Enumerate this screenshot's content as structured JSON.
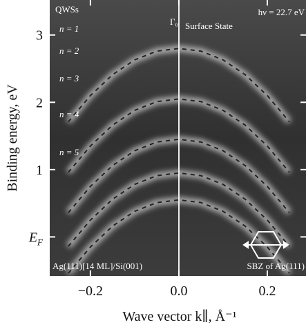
{
  "chart_data": {
    "type": "line",
    "ylabel": "Binding energy, eV",
    "xlabel": "Wave vector k∥, Å⁻¹",
    "xlim": [
      -0.292,
      0.2875
    ],
    "ylim": [
      3.52,
      -0.58
    ],
    "xticks": [
      {
        "value": -0.2,
        "label": "−0.2"
      },
      {
        "value": 0,
        "label": "0.0"
      },
      {
        "value": 0.2,
        "label": "0.2"
      }
    ],
    "yticks": [
      {
        "value": 0,
        "label": "EF"
      },
      1,
      2,
      3
    ],
    "x": [
      -0.25,
      -0.2,
      -0.15,
      -0.1,
      -0.05,
      0,
      0.05,
      0.1,
      0.15,
      0.2,
      0.25
    ],
    "series": [
      {
        "color": "#222222",
        "values": [
          -0.54,
          -0.15,
          0.16,
          0.38,
          0.51,
          0.55,
          0.51,
          0.38,
          0.16,
          -0.15,
          -0.54
        ]
      },
      {
        "color": "#222222",
        "values": [
          -0.14,
          0.25,
          0.56,
          0.78,
          0.91,
          0.95,
          0.91,
          0.78,
          0.56,
          0.25,
          -0.14
        ]
      },
      {
        "color": "#222222",
        "values": [
          0.36,
          0.75,
          1.06,
          1.28,
          1.41,
          1.45,
          1.41,
          1.28,
          1.06,
          0.75,
          0.36
        ]
      },
      {
        "color": "#222222",
        "values": [
          0.96,
          1.35,
          1.66,
          1.88,
          2.01,
          2.05,
          2.01,
          1.88,
          1.66,
          1.35,
          0.96
        ]
      },
      {
        "color": "#222222",
        "values": [
          1.71,
          2.1,
          2.41,
          2.63,
          2.76,
          2.8,
          2.76,
          2.63,
          2.41,
          2.1,
          1.71
        ]
      }
    ],
    "annotations": [
      "QWSs",
      "n = 1",
      "n = 2",
      "n = 3",
      "n = 4",
      "n = 5",
      "Γ₀",
      "Surface State",
      "hν = 22.7 eV",
      "Ag(111)[14 ML]/Si(001)",
      "SBZ of Ag(111)"
    ]
  }
}
